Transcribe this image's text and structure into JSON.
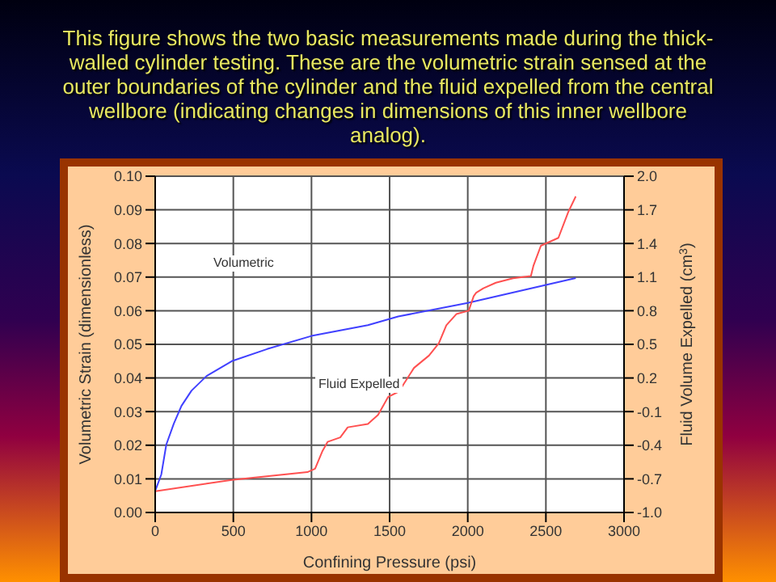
{
  "chart_data": {
    "type": "line",
    "title": "This figure shows the two basic measurements made during the thick-walled cylinder testing.  These are the volumetric strain sensed at the outer boundaries of the cylinder and the fluid expelled from the central wellbore (indicating changes in dimensions of this inner wellbore analog).",
    "xlabel": "Confining Pressure (psi)",
    "ylabel": "Volumetric Strain (dimensionless)",
    "y2label": "Fluid Volume Expelled (cm$^{3}$)",
    "series": [
      {
        "color": "#4040ff",
        "x": [
          0,
          39,
          71,
          119,
          168,
          232,
          329,
          490,
          716,
          1000,
          1361,
          1555,
          2000,
          2691
        ],
        "values": [
          0.0064,
          0.0113,
          0.0202,
          0.0264,
          0.0317,
          0.0362,
          0.0406,
          0.045,
          0.0486,
          0.0525,
          0.0557,
          0.0583,
          0.0623,
          0.0697
        ]
      },
      {
        "color": "#ff5050",
        "axis": "y2",
        "x": [
          0,
          490,
          974,
          1023,
          1071,
          1103,
          1184,
          1232,
          1361,
          1426,
          1490,
          1560,
          1656,
          1752,
          1815,
          1863,
          1927,
          2006,
          2038,
          2054,
          2100,
          2180,
          2290,
          2404,
          2420,
          2468,
          2580,
          2643,
          2691
        ],
        "values": [
          -0.81,
          -0.71,
          -0.64,
          -0.61,
          -0.45,
          -0.37,
          -0.33,
          -0.24,
          -0.21,
          -0.13,
          0.03,
          0.08,
          0.29,
          0.4,
          0.51,
          0.67,
          0.77,
          0.8,
          0.93,
          0.96,
          1.0,
          1.05,
          1.09,
          1.11,
          1.2,
          1.38,
          1.45,
          1.68,
          1.82
        ]
      }
    ],
    "annotations": [
      "Volumetric",
      "Fluid Expelled"
    ],
    "xlim": [
      0,
      3000
    ],
    "xticks": [
      0,
      500,
      1000,
      1500,
      2000,
      2500,
      3000
    ],
    "ylim": [
      0,
      0.1
    ],
    "yticks": [
      {
        "value": 0,
        "label": "0.00"
      },
      {
        "value": 0.01,
        "label": "0.01"
      },
      {
        "value": 0.02,
        "label": "0.02"
      },
      {
        "value": 0.03,
        "label": "0.03"
      },
      {
        "value": 0.04,
        "label": "0.04"
      },
      {
        "value": 0.05,
        "label": "0.05"
      },
      {
        "value": 0.06,
        "label": "0.06"
      },
      {
        "value": 0.07,
        "label": "0.07"
      },
      {
        "value": 0.08,
        "label": "0.08"
      },
      {
        "value": 0.09,
        "label": "0.09"
      },
      {
        "value": 0.1,
        "label": "0.10"
      }
    ],
    "y2lim": [
      -1,
      2
    ],
    "y2ticks": [
      {
        "value": -1,
        "label": "-1.0"
      },
      -0.7,
      -0.4,
      -0.1,
      0.2,
      0.5,
      0.8,
      1.1,
      1.4,
      1.7,
      {
        "value": 2,
        "label": "2.0"
      }
    ],
    "grid": true,
    "legend": false,
    "marker": "none",
    "line_style": "solid"
  }
}
